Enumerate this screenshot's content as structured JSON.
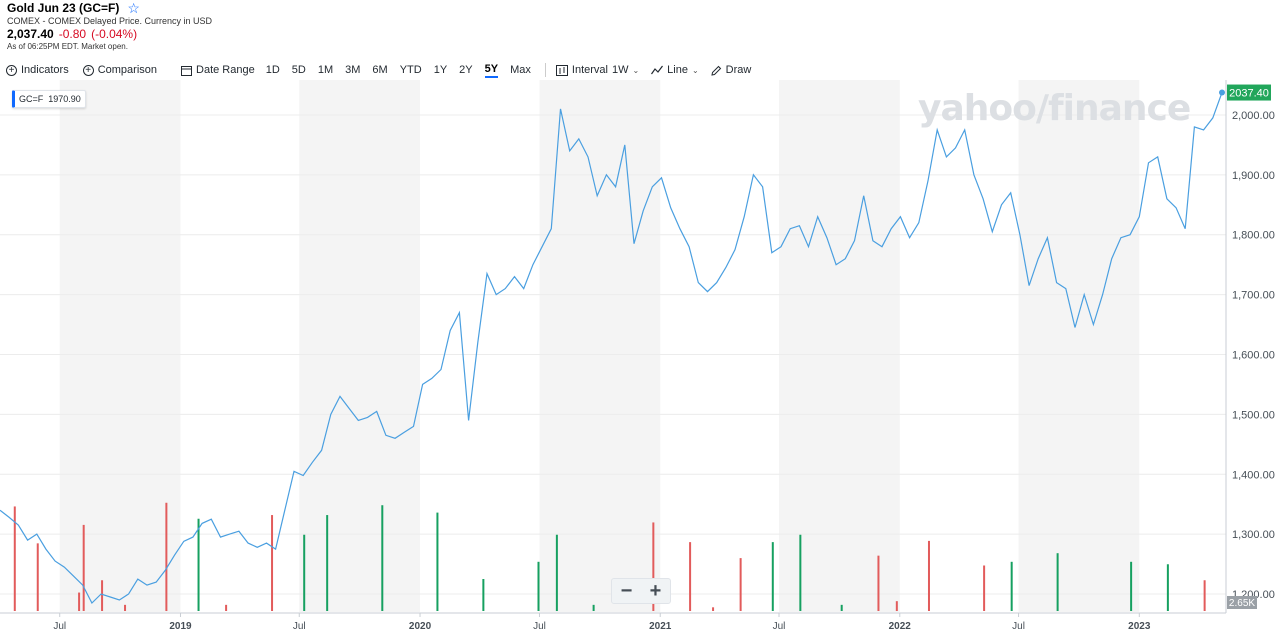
{
  "header": {
    "title": "Gold Jun 23 (GC=F)",
    "exchange": "COMEX - COMEX Delayed Price. Currency in USD",
    "price": "2,037.40",
    "change": "-0.80",
    "change_pct": "(-0.04%)",
    "as_of": "As of 06:25PM EDT. Market open."
  },
  "toolbar": {
    "indicators": "Indicators",
    "comparison": "Comparison",
    "date_range": "Date Range",
    "ranges": [
      "1D",
      "5D",
      "1M",
      "3M",
      "6M",
      "YTD",
      "1Y",
      "2Y",
      "5Y",
      "Max"
    ],
    "active_range": "5Y",
    "interval_label": "Interval",
    "interval_value": "1W",
    "line": "Line",
    "draw": "Draw"
  },
  "legend": {
    "symbol": "GC=F",
    "value": "1970.90"
  },
  "watermark": "yahoo/finance",
  "zoom": {
    "minus": "−",
    "plus": "+"
  },
  "colors": {
    "line": "#4a9fe0",
    "up": "#16a060",
    "down": "#e25b5b",
    "last_price_bg": "#21a65b",
    "band": "#f4f4f4",
    "accent": "#0f69ff"
  },
  "chart_data": {
    "type": "line",
    "series": [
      {
        "name": "GC=F"
      }
    ],
    "x_tick_labels": [
      "Jul",
      "2019",
      "Jul",
      "2020",
      "Jul",
      "2021",
      "Jul",
      "2022",
      "Jul",
      "2023"
    ],
    "y_ticks": [
      "1,200.00",
      "1,300.00",
      "1,400.00",
      "1,500.00",
      "1,600.00",
      "1,700.00",
      "1,800.00",
      "1,900.00",
      "2,000.00"
    ],
    "ylim": [
      1170,
      2055
    ],
    "xlim": [
      "2018-04-01",
      "2023-05-07"
    ],
    "last_price": "2037.40",
    "volume_max_label": "2.65K",
    "points": [
      [
        "2018-04-01",
        1340
      ],
      [
        "2018-04-15",
        1328
      ],
      [
        "2018-04-29",
        1315
      ],
      [
        "2018-05-13",
        1290
      ],
      [
        "2018-05-27",
        1300
      ],
      [
        "2018-06-10",
        1275
      ],
      [
        "2018-06-24",
        1255
      ],
      [
        "2018-07-08",
        1245
      ],
      [
        "2018-07-22",
        1230
      ],
      [
        "2018-08-05",
        1215
      ],
      [
        "2018-08-19",
        1185
      ],
      [
        "2018-09-02",
        1200
      ],
      [
        "2018-09-16",
        1195
      ],
      [
        "2018-09-30",
        1190
      ],
      [
        "2018-10-14",
        1200
      ],
      [
        "2018-10-28",
        1225
      ],
      [
        "2018-11-11",
        1215
      ],
      [
        "2018-11-25",
        1220
      ],
      [
        "2018-12-09",
        1240
      ],
      [
        "2018-12-23",
        1265
      ],
      [
        "2019-01-06",
        1288
      ],
      [
        "2019-01-20",
        1295
      ],
      [
        "2019-02-03",
        1318
      ],
      [
        "2019-02-17",
        1325
      ],
      [
        "2019-03-03",
        1295
      ],
      [
        "2019-03-17",
        1300
      ],
      [
        "2019-03-31",
        1305
      ],
      [
        "2019-04-14",
        1285
      ],
      [
        "2019-04-28",
        1278
      ],
      [
        "2019-05-12",
        1285
      ],
      [
        "2019-05-26",
        1275
      ],
      [
        "2019-06-09",
        1340
      ],
      [
        "2019-06-23",
        1405
      ],
      [
        "2019-07-07",
        1398
      ],
      [
        "2019-07-21",
        1420
      ],
      [
        "2019-08-04",
        1440
      ],
      [
        "2019-08-18",
        1500
      ],
      [
        "2019-09-01",
        1530
      ],
      [
        "2019-09-15",
        1510
      ],
      [
        "2019-09-29",
        1490
      ],
      [
        "2019-10-13",
        1495
      ],
      [
        "2019-10-27",
        1505
      ],
      [
        "2019-11-10",
        1465
      ],
      [
        "2019-11-24",
        1460
      ],
      [
        "2019-12-08",
        1470
      ],
      [
        "2019-12-22",
        1480
      ],
      [
        "2020-01-05",
        1550
      ],
      [
        "2020-01-19",
        1560
      ],
      [
        "2020-02-02",
        1575
      ],
      [
        "2020-02-16",
        1640
      ],
      [
        "2020-03-01",
        1670
      ],
      [
        "2020-03-15",
        1490
      ],
      [
        "2020-03-29",
        1620
      ],
      [
        "2020-04-12",
        1735
      ],
      [
        "2020-04-26",
        1700
      ],
      [
        "2020-05-10",
        1710
      ],
      [
        "2020-05-24",
        1730
      ],
      [
        "2020-06-07",
        1710
      ],
      [
        "2020-06-21",
        1750
      ],
      [
        "2020-07-05",
        1780
      ],
      [
        "2020-07-19",
        1810
      ],
      [
        "2020-08-02",
        2010
      ],
      [
        "2020-08-16",
        1940
      ],
      [
        "2020-08-30",
        1960
      ],
      [
        "2020-09-13",
        1930
      ],
      [
        "2020-09-27",
        1865
      ],
      [
        "2020-10-11",
        1900
      ],
      [
        "2020-10-25",
        1880
      ],
      [
        "2020-11-08",
        1950
      ],
      [
        "2020-11-22",
        1785
      ],
      [
        "2020-12-06",
        1840
      ],
      [
        "2020-12-20",
        1880
      ],
      [
        "2021-01-03",
        1895
      ],
      [
        "2021-01-17",
        1845
      ],
      [
        "2021-01-31",
        1810
      ],
      [
        "2021-02-14",
        1780
      ],
      [
        "2021-02-28",
        1720
      ],
      [
        "2021-03-14",
        1705
      ],
      [
        "2021-03-28",
        1720
      ],
      [
        "2021-04-11",
        1745
      ],
      [
        "2021-04-25",
        1775
      ],
      [
        "2021-05-09",
        1830
      ],
      [
        "2021-05-23",
        1900
      ],
      [
        "2021-06-06",
        1880
      ],
      [
        "2021-06-20",
        1770
      ],
      [
        "2021-07-04",
        1780
      ],
      [
        "2021-07-18",
        1810
      ],
      [
        "2021-08-01",
        1815
      ],
      [
        "2021-08-15",
        1780
      ],
      [
        "2021-08-29",
        1830
      ],
      [
        "2021-09-12",
        1795
      ],
      [
        "2021-09-26",
        1750
      ],
      [
        "2021-10-10",
        1760
      ],
      [
        "2021-10-24",
        1790
      ],
      [
        "2021-11-07",
        1865
      ],
      [
        "2021-11-21",
        1790
      ],
      [
        "2021-12-05",
        1780
      ],
      [
        "2021-12-19",
        1810
      ],
      [
        "2022-01-02",
        1830
      ],
      [
        "2022-01-16",
        1795
      ],
      [
        "2022-01-30",
        1820
      ],
      [
        "2022-02-13",
        1890
      ],
      [
        "2022-02-27",
        1975
      ],
      [
        "2022-03-13",
        1930
      ],
      [
        "2022-03-27",
        1945
      ],
      [
        "2022-04-10",
        1975
      ],
      [
        "2022-04-24",
        1900
      ],
      [
        "2022-05-08",
        1860
      ],
      [
        "2022-05-22",
        1805
      ],
      [
        "2022-06-05",
        1850
      ],
      [
        "2022-06-19",
        1870
      ],
      [
        "2022-07-03",
        1800
      ],
      [
        "2022-07-17",
        1715
      ],
      [
        "2022-07-31",
        1760
      ],
      [
        "2022-08-14",
        1795
      ],
      [
        "2022-08-28",
        1720
      ],
      [
        "2022-09-11",
        1710
      ],
      [
        "2022-09-25",
        1645
      ],
      [
        "2022-10-09",
        1700
      ],
      [
        "2022-10-23",
        1650
      ],
      [
        "2022-11-06",
        1700
      ],
      [
        "2022-11-20",
        1760
      ],
      [
        "2022-12-04",
        1795
      ],
      [
        "2022-12-18",
        1800
      ],
      [
        "2023-01-01",
        1830
      ],
      [
        "2023-01-15",
        1920
      ],
      [
        "2023-01-29",
        1930
      ],
      [
        "2023-02-12",
        1860
      ],
      [
        "2023-02-26",
        1845
      ],
      [
        "2023-03-12",
        1810
      ],
      [
        "2023-03-26",
        1980
      ],
      [
        "2023-04-09",
        1975
      ],
      [
        "2023-04-23",
        1995
      ],
      [
        "2023-05-07",
        2037.4
      ]
    ],
    "volume": [
      [
        "2018-04-22",
        0.85,
        "down"
      ],
      [
        "2018-05-27",
        0.55,
        "down"
      ],
      [
        "2018-07-29",
        0.15,
        "down"
      ],
      [
        "2018-08-05",
        0.7,
        "down"
      ],
      [
        "2018-09-02",
        0.25,
        "down"
      ],
      [
        "2018-10-07",
        0.05,
        "down"
      ],
      [
        "2018-12-09",
        0.88,
        "down"
      ],
      [
        "2019-01-27",
        0.75,
        "up"
      ],
      [
        "2019-03-10",
        0.05,
        "down"
      ],
      [
        "2019-05-19",
        0.78,
        "down"
      ],
      [
        "2019-07-07",
        0.62,
        "up"
      ],
      [
        "2019-08-11",
        0.78,
        "up"
      ],
      [
        "2019-11-03",
        0.86,
        "up"
      ],
      [
        "2020-01-26",
        0.8,
        "up"
      ],
      [
        "2020-04-05",
        0.26,
        "up"
      ],
      [
        "2020-06-28",
        0.4,
        "up"
      ],
      [
        "2020-07-26",
        0.62,
        "up"
      ],
      [
        "2020-09-20",
        0.05,
        "up"
      ],
      [
        "2020-12-20",
        0.72,
        "down"
      ],
      [
        "2021-02-14",
        0.56,
        "down"
      ],
      [
        "2021-03-21",
        0.03,
        "down"
      ],
      [
        "2021-05-02",
        0.43,
        "down"
      ],
      [
        "2021-06-20",
        0.56,
        "up"
      ],
      [
        "2021-08-01",
        0.62,
        "up"
      ],
      [
        "2021-10-03",
        0.05,
        "up"
      ],
      [
        "2021-11-28",
        0.45,
        "down"
      ],
      [
        "2021-12-26",
        0.08,
        "down"
      ],
      [
        "2022-02-13",
        0.57,
        "down"
      ],
      [
        "2022-05-08",
        0.37,
        "down"
      ],
      [
        "2022-06-19",
        0.4,
        "up"
      ],
      [
        "2022-08-28",
        0.47,
        "up"
      ],
      [
        "2022-12-18",
        0.4,
        "up"
      ],
      [
        "2023-02-12",
        0.38,
        "up"
      ],
      [
        "2023-04-09",
        0.25,
        "down"
      ]
    ]
  }
}
